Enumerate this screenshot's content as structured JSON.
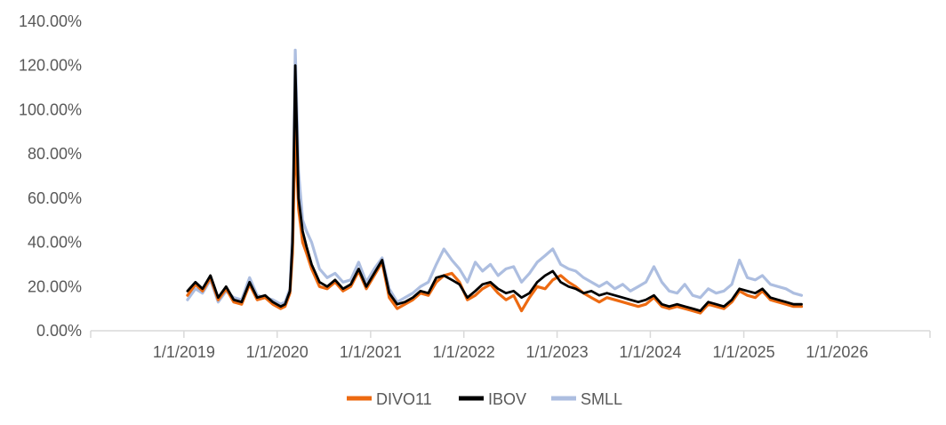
{
  "chart_data": {
    "type": "line",
    "title": "",
    "xlabel": "",
    "ylabel": "",
    "ylim": [
      0,
      1.4
    ],
    "y_tick_format": "percent_2dp",
    "y_ticks": [
      0,
      0.2,
      0.4,
      0.6,
      0.8,
      1.0,
      1.2,
      1.4
    ],
    "y_tick_labels": [
      "0.00%",
      "20.00%",
      "40.00%",
      "60.00%",
      "80.00%",
      "100.00%",
      "120.00%",
      "140.00%"
    ],
    "xlim": [
      "2018-01-01",
      "2026-12-31"
    ],
    "x_ticks": [
      "2019-01-01",
      "2020-01-01",
      "2021-01-01",
      "2022-01-01",
      "2023-01-01",
      "2024-01-01",
      "2025-01-01",
      "2026-01-01"
    ],
    "x_tick_labels": [
      "1/1/2019",
      "1/1/2020",
      "1/1/2021",
      "1/1/2022",
      "1/1/2023",
      "1/1/2024",
      "1/1/2025",
      "1/1/2026"
    ],
    "grid": false,
    "legend_position": "bottom",
    "series": [
      {
        "name": "DIVO11",
        "color": "#ED6A11",
        "x": [
          "2019-01-15",
          "2019-02-15",
          "2019-03-15",
          "2019-04-15",
          "2019-05-15",
          "2019-06-15",
          "2019-07-15",
          "2019-08-15",
          "2019-09-15",
          "2019-10-15",
          "2019-11-15",
          "2019-12-15",
          "2020-01-15",
          "2020-02-01",
          "2020-02-20",
          "2020-03-01",
          "2020-03-12",
          "2020-03-25",
          "2020-04-10",
          "2020-04-25",
          "2020-05-15",
          "2020-06-15",
          "2020-07-15",
          "2020-08-15",
          "2020-09-15",
          "2020-10-15",
          "2020-11-15",
          "2020-12-15",
          "2021-01-15",
          "2021-02-15",
          "2021-03-15",
          "2021-04-15",
          "2021-05-15",
          "2021-06-15",
          "2021-07-15",
          "2021-08-15",
          "2021-09-15",
          "2021-10-15",
          "2021-11-15",
          "2021-12-15",
          "2022-01-15",
          "2022-02-15",
          "2022-03-15",
          "2022-04-15",
          "2022-05-15",
          "2022-06-15",
          "2022-07-15",
          "2022-08-15",
          "2022-09-15",
          "2022-10-15",
          "2022-11-15",
          "2022-12-15",
          "2023-01-15",
          "2023-02-15",
          "2023-03-15",
          "2023-04-15",
          "2023-05-15",
          "2023-06-15",
          "2023-07-15",
          "2023-08-15",
          "2023-09-15",
          "2023-10-15",
          "2023-11-15",
          "2023-12-15",
          "2024-01-15",
          "2024-02-15",
          "2024-03-15",
          "2024-04-15",
          "2024-05-15",
          "2024-06-15",
          "2024-07-15",
          "2024-08-15",
          "2024-09-15",
          "2024-10-15",
          "2024-11-15",
          "2024-12-15",
          "2025-01-15",
          "2025-02-15",
          "2025-03-15",
          "2025-04-15",
          "2025-05-15",
          "2025-06-15",
          "2025-07-15",
          "2025-08-15"
        ],
        "values": [
          0.16,
          0.21,
          0.18,
          0.24,
          0.14,
          0.19,
          0.13,
          0.12,
          0.21,
          0.14,
          0.15,
          0.12,
          0.1,
          0.11,
          0.17,
          0.35,
          0.91,
          0.55,
          0.4,
          0.35,
          0.28,
          0.2,
          0.19,
          0.22,
          0.18,
          0.2,
          0.27,
          0.19,
          0.25,
          0.31,
          0.15,
          0.1,
          0.12,
          0.14,
          0.17,
          0.16,
          0.22,
          0.25,
          0.26,
          0.22,
          0.14,
          0.16,
          0.19,
          0.21,
          0.17,
          0.14,
          0.16,
          0.09,
          0.15,
          0.2,
          0.19,
          0.23,
          0.25,
          0.22,
          0.2,
          0.17,
          0.15,
          0.13,
          0.15,
          0.14,
          0.13,
          0.12,
          0.11,
          0.12,
          0.15,
          0.11,
          0.1,
          0.11,
          0.1,
          0.09,
          0.08,
          0.12,
          0.11,
          0.1,
          0.13,
          0.18,
          0.16,
          0.15,
          0.18,
          0.14,
          0.13,
          0.12,
          0.11,
          0.11
        ]
      },
      {
        "name": "IBOV",
        "color": "#000000",
        "x": [
          "2019-01-15",
          "2019-02-15",
          "2019-03-15",
          "2019-04-15",
          "2019-05-15",
          "2019-06-15",
          "2019-07-15",
          "2019-08-15",
          "2019-09-15",
          "2019-10-15",
          "2019-11-15",
          "2019-12-15",
          "2020-01-15",
          "2020-02-01",
          "2020-02-20",
          "2020-03-01",
          "2020-03-12",
          "2020-03-25",
          "2020-04-10",
          "2020-04-25",
          "2020-05-15",
          "2020-06-15",
          "2020-07-15",
          "2020-08-15",
          "2020-09-15",
          "2020-10-15",
          "2020-11-15",
          "2020-12-15",
          "2021-01-15",
          "2021-02-15",
          "2021-03-15",
          "2021-04-15",
          "2021-05-15",
          "2021-06-15",
          "2021-07-15",
          "2021-08-15",
          "2021-09-15",
          "2021-10-15",
          "2021-11-15",
          "2021-12-15",
          "2022-01-15",
          "2022-02-15",
          "2022-03-15",
          "2022-04-15",
          "2022-05-15",
          "2022-06-15",
          "2022-07-15",
          "2022-08-15",
          "2022-09-15",
          "2022-10-15",
          "2022-11-15",
          "2022-12-15",
          "2023-01-15",
          "2023-02-15",
          "2023-03-15",
          "2023-04-15",
          "2023-05-15",
          "2023-06-15",
          "2023-07-15",
          "2023-08-15",
          "2023-09-15",
          "2023-10-15",
          "2023-11-15",
          "2023-12-15",
          "2024-01-15",
          "2024-02-15",
          "2024-03-15",
          "2024-04-15",
          "2024-05-15",
          "2024-06-15",
          "2024-07-15",
          "2024-08-15",
          "2024-09-15",
          "2024-10-15",
          "2024-11-15",
          "2024-12-15",
          "2025-01-15",
          "2025-02-15",
          "2025-03-15",
          "2025-04-15",
          "2025-05-15",
          "2025-06-15",
          "2025-07-15",
          "2025-08-15"
        ],
        "values": [
          0.18,
          0.22,
          0.19,
          0.25,
          0.15,
          0.2,
          0.14,
          0.13,
          0.22,
          0.15,
          0.16,
          0.13,
          0.11,
          0.12,
          0.18,
          0.4,
          1.2,
          0.6,
          0.45,
          0.38,
          0.3,
          0.22,
          0.2,
          0.23,
          0.19,
          0.21,
          0.28,
          0.2,
          0.26,
          0.32,
          0.17,
          0.12,
          0.13,
          0.15,
          0.18,
          0.17,
          0.24,
          0.25,
          0.23,
          0.21,
          0.15,
          0.18,
          0.21,
          0.22,
          0.19,
          0.17,
          0.18,
          0.15,
          0.17,
          0.22,
          0.25,
          0.27,
          0.22,
          0.2,
          0.19,
          0.17,
          0.18,
          0.16,
          0.17,
          0.16,
          0.15,
          0.14,
          0.13,
          0.14,
          0.16,
          0.12,
          0.11,
          0.12,
          0.11,
          0.1,
          0.09,
          0.13,
          0.12,
          0.11,
          0.14,
          0.19,
          0.18,
          0.17,
          0.19,
          0.15,
          0.14,
          0.13,
          0.12,
          0.12
        ]
      },
      {
        "name": "SMLL",
        "color": "#ADBEE0",
        "x": [
          "2019-01-15",
          "2019-02-15",
          "2019-03-15",
          "2019-04-15",
          "2019-05-15",
          "2019-06-15",
          "2019-07-15",
          "2019-08-15",
          "2019-09-15",
          "2019-10-15",
          "2019-11-15",
          "2019-12-15",
          "2020-01-15",
          "2020-02-01",
          "2020-02-20",
          "2020-03-01",
          "2020-03-12",
          "2020-03-25",
          "2020-04-10",
          "2020-04-25",
          "2020-05-15",
          "2020-06-15",
          "2020-07-15",
          "2020-08-15",
          "2020-09-15",
          "2020-10-15",
          "2020-11-15",
          "2020-12-15",
          "2021-01-15",
          "2021-02-15",
          "2021-03-15",
          "2021-04-15",
          "2021-05-15",
          "2021-06-15",
          "2021-07-15",
          "2021-08-15",
          "2021-09-15",
          "2021-10-15",
          "2021-11-15",
          "2021-12-15",
          "2022-01-15",
          "2022-02-15",
          "2022-03-15",
          "2022-04-15",
          "2022-05-15",
          "2022-06-15",
          "2022-07-15",
          "2022-08-15",
          "2022-09-15",
          "2022-10-15",
          "2022-11-15",
          "2022-12-15",
          "2023-01-15",
          "2023-02-15",
          "2023-03-15",
          "2023-04-15",
          "2023-05-15",
          "2023-06-15",
          "2023-07-15",
          "2023-08-15",
          "2023-09-15",
          "2023-10-15",
          "2023-11-15",
          "2023-12-15",
          "2024-01-15",
          "2024-02-15",
          "2024-03-15",
          "2024-04-15",
          "2024-05-15",
          "2024-06-15",
          "2024-07-15",
          "2024-08-15",
          "2024-09-15",
          "2024-10-15",
          "2024-11-15",
          "2024-12-15",
          "2025-01-15",
          "2025-02-15",
          "2025-03-15",
          "2025-04-15",
          "2025-05-15",
          "2025-06-15",
          "2025-07-15",
          "2025-08-15"
        ],
        "values": [
          0.14,
          0.19,
          0.17,
          0.23,
          0.13,
          0.18,
          0.15,
          0.14,
          0.24,
          0.16,
          0.15,
          0.14,
          0.12,
          0.13,
          0.19,
          0.45,
          1.27,
          0.72,
          0.5,
          0.45,
          0.4,
          0.28,
          0.24,
          0.26,
          0.22,
          0.23,
          0.31,
          0.22,
          0.28,
          0.33,
          0.19,
          0.13,
          0.15,
          0.17,
          0.2,
          0.22,
          0.3,
          0.37,
          0.32,
          0.28,
          0.22,
          0.31,
          0.27,
          0.3,
          0.25,
          0.28,
          0.29,
          0.22,
          0.26,
          0.31,
          0.34,
          0.37,
          0.3,
          0.28,
          0.27,
          0.24,
          0.22,
          0.2,
          0.22,
          0.19,
          0.21,
          0.18,
          0.2,
          0.22,
          0.29,
          0.22,
          0.18,
          0.17,
          0.21,
          0.16,
          0.15,
          0.19,
          0.17,
          0.18,
          0.21,
          0.32,
          0.24,
          0.23,
          0.25,
          0.21,
          0.2,
          0.19,
          0.17,
          0.16
        ]
      }
    ]
  }
}
